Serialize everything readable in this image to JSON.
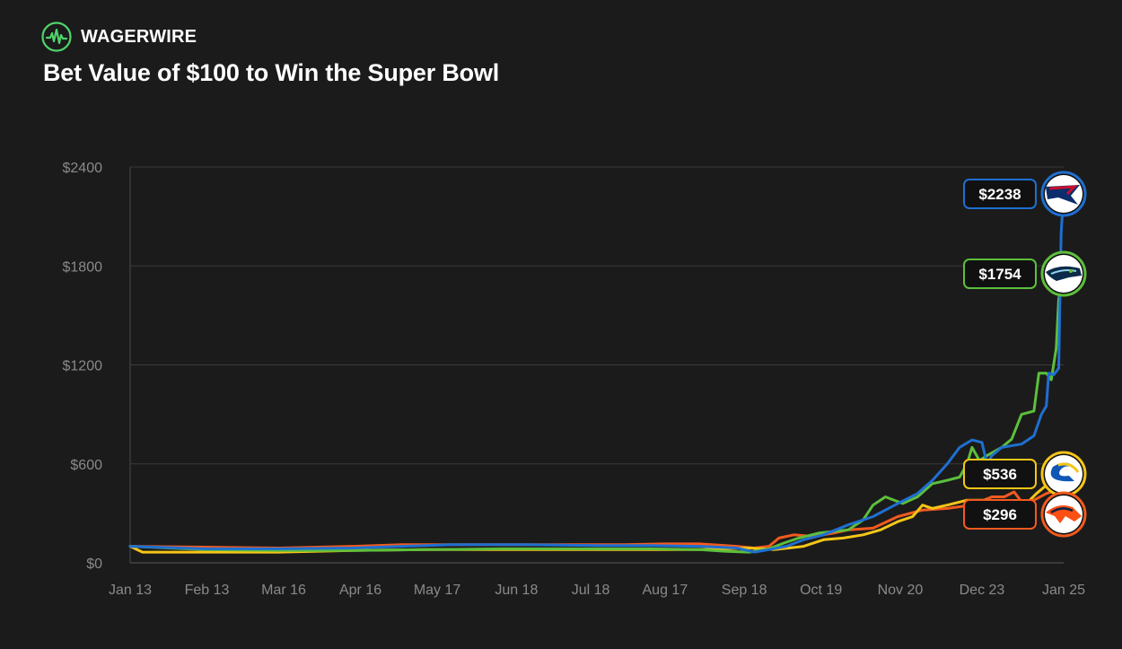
{
  "brand": {
    "name": "WAGERWIRE",
    "icon": "pulse-icon",
    "accent": "#4fd36b"
  },
  "chart_data": {
    "type": "line",
    "title": "Bet Value of $100 to Win the Super Bowl",
    "xlabel": "",
    "ylabel": "",
    "ylim": [
      0,
      2400
    ],
    "xlim": [
      0,
      377
    ],
    "grid": true,
    "y_ticks": [
      {
        "value": 0,
        "label": "$0"
      },
      {
        "value": 600,
        "label": "$600"
      },
      {
        "value": 1200,
        "label": "$1200"
      },
      {
        "value": 1800,
        "label": "$1800"
      },
      {
        "value": 2400,
        "label": "$2400"
      }
    ],
    "x_ticks": [
      {
        "day": 0,
        "label": "Jan 13"
      },
      {
        "day": 31,
        "label": "Feb 13"
      },
      {
        "day": 62,
        "label": "Mar 16"
      },
      {
        "day": 93,
        "label": "Apr 16"
      },
      {
        "day": 124,
        "label": "May 17"
      },
      {
        "day": 156,
        "label": "Jun 18"
      },
      {
        "day": 186,
        "label": "Jul 18"
      },
      {
        "day": 216,
        "label": "Aug 17"
      },
      {
        "day": 248,
        "label": "Sep 18"
      },
      {
        "day": 279,
        "label": "Oct 19"
      },
      {
        "day": 311,
        "label": "Nov 20"
      },
      {
        "day": 344,
        "label": "Dec 23"
      },
      {
        "day": 377,
        "label": "Jan 25"
      }
    ],
    "series": [
      {
        "name": "Patriots",
        "color": "#1f6fd1",
        "final_label": "$2238",
        "icon": "patriots-logo-icon",
        "points": [
          [
            0,
            100
          ],
          [
            30,
            85
          ],
          [
            60,
            85
          ],
          [
            90,
            90
          ],
          [
            110,
            100
          ],
          [
            130,
            110
          ],
          [
            160,
            110
          ],
          [
            190,
            105
          ],
          [
            210,
            105
          ],
          [
            230,
            100
          ],
          [
            245,
            90
          ],
          [
            252,
            65
          ],
          [
            258,
            80
          ],
          [
            265,
            100
          ],
          [
            272,
            140
          ],
          [
            280,
            170
          ],
          [
            290,
            230
          ],
          [
            300,
            280
          ],
          [
            310,
            360
          ],
          [
            318,
            420
          ],
          [
            324,
            500
          ],
          [
            330,
            600
          ],
          [
            335,
            700
          ],
          [
            340,
            745
          ],
          [
            344,
            730
          ],
          [
            346,
            600
          ],
          [
            348,
            650
          ],
          [
            352,
            700
          ],
          [
            360,
            720
          ],
          [
            365,
            770
          ],
          [
            368,
            900
          ],
          [
            370,
            950
          ],
          [
            371,
            1150
          ],
          [
            373,
            1140
          ],
          [
            375,
            1180
          ],
          [
            376,
            2000
          ],
          [
            377,
            2238
          ]
        ]
      },
      {
        "name": "Seahawks",
        "color": "#5cbf3c",
        "final_label": "$1754",
        "icon": "seahawks-logo-icon",
        "points": [
          [
            0,
            100
          ],
          [
            30,
            80
          ],
          [
            60,
            75
          ],
          [
            90,
            75
          ],
          [
            120,
            80
          ],
          [
            150,
            85
          ],
          [
            180,
            85
          ],
          [
            210,
            85
          ],
          [
            230,
            80
          ],
          [
            240,
            70
          ],
          [
            250,
            65
          ],
          [
            258,
            85
          ],
          [
            264,
            120
          ],
          [
            270,
            150
          ],
          [
            278,
            180
          ],
          [
            290,
            200
          ],
          [
            296,
            260
          ],
          [
            300,
            350
          ],
          [
            305,
            400
          ],
          [
            312,
            360
          ],
          [
            318,
            400
          ],
          [
            324,
            480
          ],
          [
            330,
            500
          ],
          [
            335,
            520
          ],
          [
            338,
            600
          ],
          [
            340,
            700
          ],
          [
            343,
            620
          ],
          [
            346,
            650
          ],
          [
            352,
            700
          ],
          [
            356,
            750
          ],
          [
            360,
            900
          ],
          [
            365,
            920
          ],
          [
            367,
            1150
          ],
          [
            370,
            1150
          ],
          [
            372,
            1110
          ],
          [
            374,
            1300
          ],
          [
            375,
            1600
          ],
          [
            377,
            1754
          ]
        ]
      },
      {
        "name": "Rams",
        "color": "#f5c518",
        "final_label": "$536",
        "icon": "rams-logo-icon",
        "points": [
          [
            0,
            100
          ],
          [
            5,
            65
          ],
          [
            30,
            65
          ],
          [
            60,
            65
          ],
          [
            90,
            75
          ],
          [
            120,
            80
          ],
          [
            150,
            80
          ],
          [
            180,
            80
          ],
          [
            210,
            80
          ],
          [
            230,
            80
          ],
          [
            250,
            90
          ],
          [
            260,
            80
          ],
          [
            266,
            90
          ],
          [
            272,
            100
          ],
          [
            280,
            140
          ],
          [
            288,
            150
          ],
          [
            296,
            170
          ],
          [
            303,
            200
          ],
          [
            310,
            250
          ],
          [
            316,
            280
          ],
          [
            320,
            350
          ],
          [
            324,
            330
          ],
          [
            330,
            350
          ],
          [
            338,
            380
          ],
          [
            346,
            380
          ],
          [
            352,
            330
          ],
          [
            360,
            330
          ],
          [
            366,
            420
          ],
          [
            370,
            470
          ],
          [
            374,
            520
          ],
          [
            377,
            536
          ]
        ]
      },
      {
        "name": "Broncos",
        "color": "#f25a1f",
        "final_label": "$296",
        "icon": "broncos-logo-icon",
        "points": [
          [
            0,
            100
          ],
          [
            30,
            95
          ],
          [
            60,
            90
          ],
          [
            90,
            100
          ],
          [
            110,
            110
          ],
          [
            140,
            110
          ],
          [
            170,
            110
          ],
          [
            200,
            110
          ],
          [
            215,
            115
          ],
          [
            230,
            115
          ],
          [
            245,
            100
          ],
          [
            252,
            90
          ],
          [
            258,
            100
          ],
          [
            262,
            150
          ],
          [
            268,
            170
          ],
          [
            276,
            160
          ],
          [
            284,
            180
          ],
          [
            290,
            200
          ],
          [
            300,
            210
          ],
          [
            310,
            280
          ],
          [
            320,
            320
          ],
          [
            330,
            330
          ],
          [
            340,
            350
          ],
          [
            348,
            400
          ],
          [
            353,
            400
          ],
          [
            357,
            430
          ],
          [
            361,
            350
          ],
          [
            365,
            380
          ],
          [
            370,
            420
          ],
          [
            374,
            440
          ],
          [
            377,
            296
          ]
        ]
      }
    ]
  }
}
